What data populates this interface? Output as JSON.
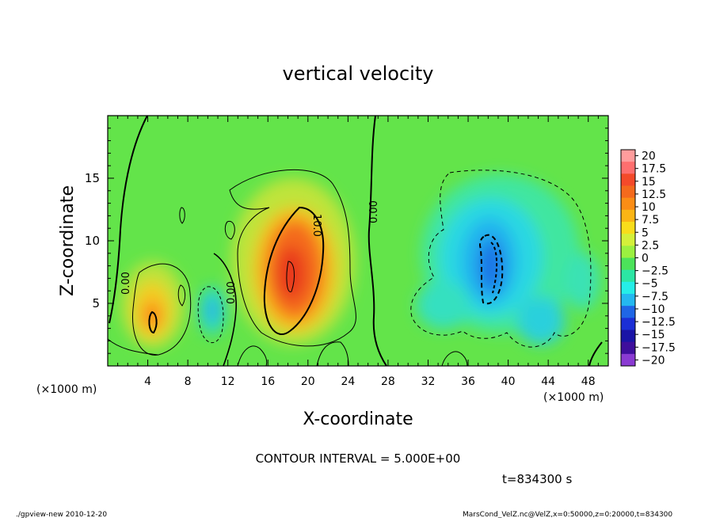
{
  "chart_data": {
    "type": "heatmap",
    "title": "vertical velocity",
    "xlabel": "X-coordinate",
    "ylabel": "Z-coordinate",
    "x_unit": "(×1000 m)",
    "xlim": [
      0,
      50
    ],
    "ylim": [
      0,
      20
    ],
    "x_ticks": [
      "4",
      "8",
      "12",
      "16",
      "20",
      "24",
      "28",
      "32",
      "36",
      "40",
      "44",
      "48"
    ],
    "y_ticks": [
      "5",
      "10",
      "15"
    ],
    "colorbar": {
      "labels": [
        "20",
        "17.5",
        "15",
        "12.5",
        "10",
        "7.5",
        "5",
        "2.5",
        "0",
        "-2.5",
        "-5",
        "-7.5",
        "-10",
        "-12.5",
        "-15",
        "-17.5",
        "-20"
      ],
      "colors": [
        "#ff9d9d",
        "#ff6f6f",
        "#f44a2a",
        "#f46a1d",
        "#fb8d16",
        "#fbb515",
        "#f8dd1b",
        "#d4f03a",
        "#9bf040",
        "#4ce35a",
        "#2ce6a4",
        "#25eee8",
        "#24b8f0",
        "#1f66e6",
        "#1b2fd6",
        "#1a14a6",
        "#3e0e9c",
        "#8a3ad2"
      ]
    },
    "contour_interval_text": "CONTOUR INTERVAL = 5.000E+00",
    "contour_labels": [
      "0.00",
      "0.00",
      "10.0",
      "0.00"
    ],
    "time_text": "t=834300 s",
    "features": [
      {
        "x": 4.5,
        "z": 4.8,
        "value": 11
      },
      {
        "x": 10.5,
        "z": 4.6,
        "value": -8
      },
      {
        "x": 18.5,
        "z": 8.4,
        "value": 15
      },
      {
        "x": 38.5,
        "z": 8.5,
        "value": -12
      },
      {
        "x": 43.5,
        "z": 3.5,
        "value": -6
      }
    ]
  },
  "footer": {
    "left": "./gpview-new   2010-12-20",
    "right": "MarsCond_VelZ.nc@VelZ,x=0:50000,z=0:20000,t=834300"
  }
}
